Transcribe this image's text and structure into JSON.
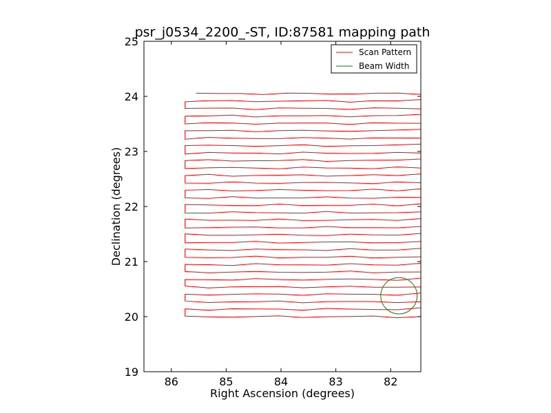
{
  "chart_data": {
    "type": "line",
    "title": "psr_j0534_2200_-ST, ID:87581 mapping path",
    "xlabel": "Right Ascension (degrees)",
    "ylabel": "Declination (degrees)",
    "xlim": [
      86.5,
      81.45
    ],
    "ylim": [
      19,
      25
    ],
    "x_ticks": [
      86,
      85,
      84,
      83,
      82
    ],
    "x_tick_labels": [
      "86",
      "85",
      "84",
      "83",
      "82"
    ],
    "y_ticks": [
      19,
      20,
      21,
      22,
      23,
      24,
      25
    ],
    "y_tick_labels": [
      "19",
      "20",
      "21",
      "22",
      "23",
      "24",
      "25"
    ],
    "grid": false,
    "legend_position": "top-right",
    "series": [
      {
        "name": "Scan Pattern",
        "color": "#ff0000",
        "kind": "raster",
        "y_start": 24.05,
        "y_end": 20.0,
        "line_spacing": 0.135,
        "x_east": 85.75,
        "x_west": 81.45,
        "x_first": 85.55
      },
      {
        "name": "Beam Width",
        "color": "#008000",
        "kind": "circle",
        "center": [
          81.85,
          20.38
        ],
        "radius_deg": 0.33
      }
    ]
  }
}
